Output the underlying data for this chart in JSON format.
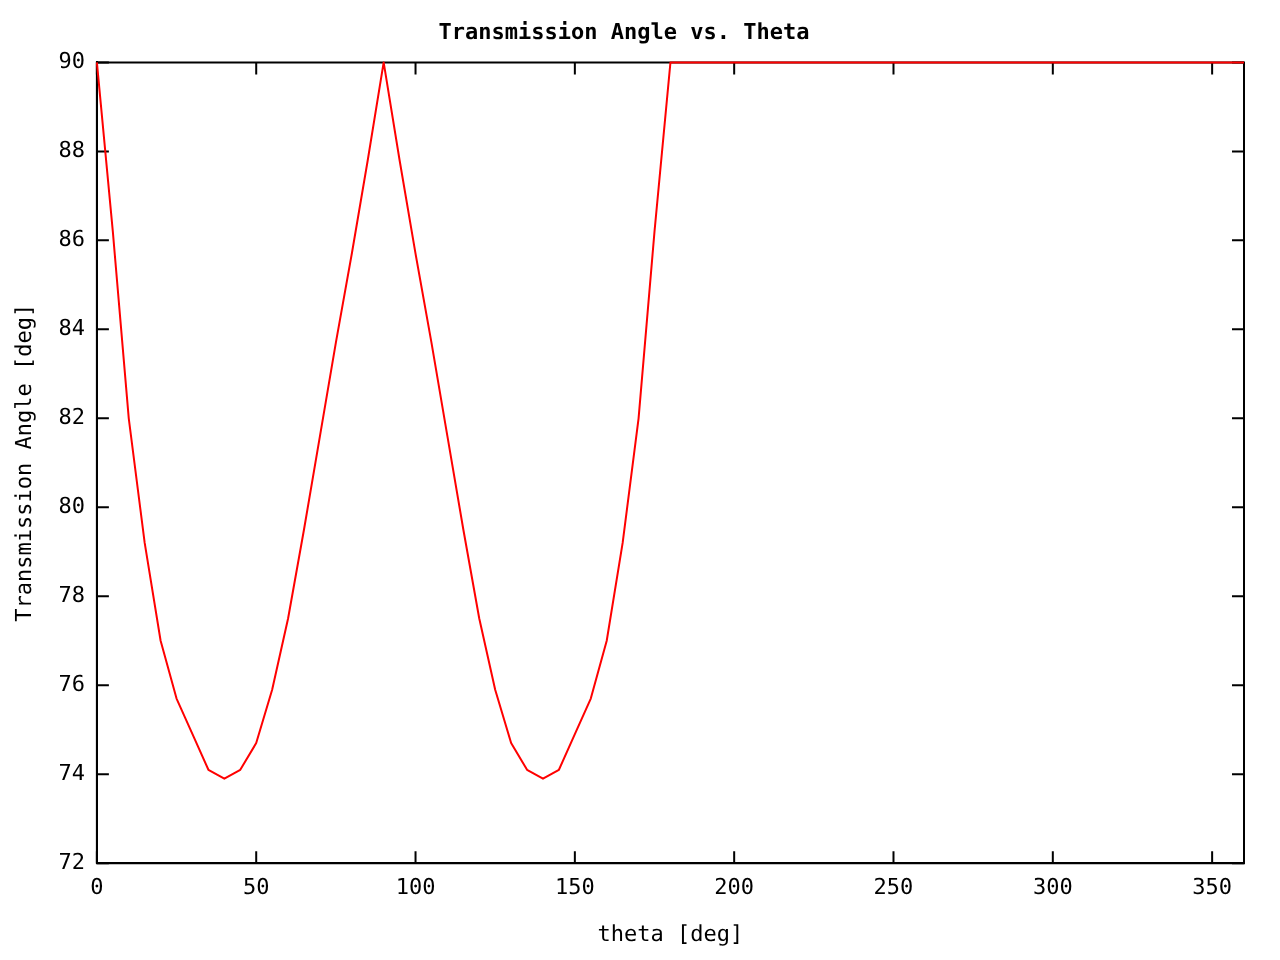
{
  "chart_data": {
    "type": "line",
    "title": "Transmission Angle vs. Theta",
    "xlabel": "theta [deg]",
    "ylabel": "Transmission Angle [deg]",
    "x": [
      0,
      5,
      10,
      15,
      20,
      25,
      30,
      35,
      40,
      45,
      50,
      55,
      60,
      65,
      70,
      75,
      80,
      85,
      90,
      95,
      100,
      105,
      110,
      115,
      120,
      125,
      130,
      135,
      140,
      145,
      150,
      155,
      160,
      165,
      170,
      175,
      180,
      360
    ],
    "series": [
      {
        "color": "#ff0000",
        "values": [
          90,
          86.2,
          82,
          79.2,
          77,
          75.7,
          74.9,
          74.1,
          73.9,
          74.1,
          74.7,
          75.9,
          77.5,
          79.5,
          81.6,
          83.7,
          85.7,
          87.8,
          90,
          87.8,
          85.7,
          83.7,
          81.6,
          79.5,
          77.5,
          75.9,
          74.7,
          74.1,
          73.9,
          74.1,
          74.9,
          75.7,
          77,
          79.2,
          82,
          86.2,
          90,
          90
        ]
      }
    ],
    "xlim": [
      0,
      360
    ],
    "xticks": [
      0,
      50,
      100,
      150,
      200,
      250,
      300,
      350
    ],
    "ylim": [
      72,
      90
    ],
    "yticks": [
      72,
      74,
      76,
      78,
      80,
      82,
      84,
      86,
      88,
      90
    ],
    "grid": false,
    "legend": false,
    "marker": "none",
    "line_style": "solid"
  }
}
